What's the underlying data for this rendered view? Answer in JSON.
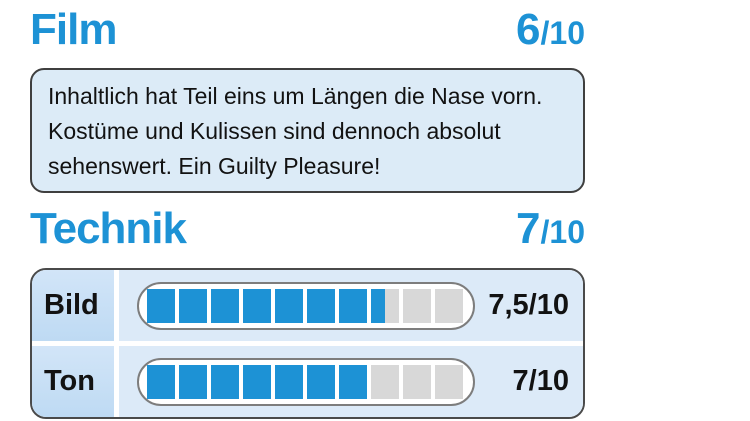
{
  "colors": {
    "accent": "#1d92d5",
    "box_bg": "#dcebf7",
    "box_border": "#3f3f3f",
    "label_grad_top": "#d2e5f8",
    "label_grad_bottom": "#bedaf3",
    "barcell_bg": "#dceaf8",
    "seg_empty": "#d8d8d8",
    "pill_border": "#7d7d7d",
    "table_border": "#4a4a4a",
    "ink": "#121212"
  },
  "film": {
    "title": "Film",
    "score_main": "6",
    "score_suffix": "/10",
    "review": "Inhaltlich hat Teil eins um Längen die Nase vorn. Kostüme und Kulissen sind dennoch absolut sehenswert. Ein Guilty Pleasure!"
  },
  "technik": {
    "title": "Technik",
    "score_main": "7",
    "score_suffix": "/10",
    "rows": [
      {
        "label": "Bild",
        "value": 7.5,
        "max": 10,
        "display": "7,5/10"
      },
      {
        "label": "Ton",
        "value": 7,
        "max": 10,
        "display": "7/10"
      }
    ]
  },
  "chart_data": {
    "type": "bar",
    "title": "Technik",
    "categories": [
      "Bild",
      "Ton"
    ],
    "values": [
      7.5,
      7
    ],
    "value_labels": [
      "7,5/10",
      "7/10"
    ],
    "ylim": [
      0,
      10
    ],
    "legend": "none",
    "notes": "segmented 10-block rating bars; filled blocks in accent blue, empty blocks grey"
  }
}
